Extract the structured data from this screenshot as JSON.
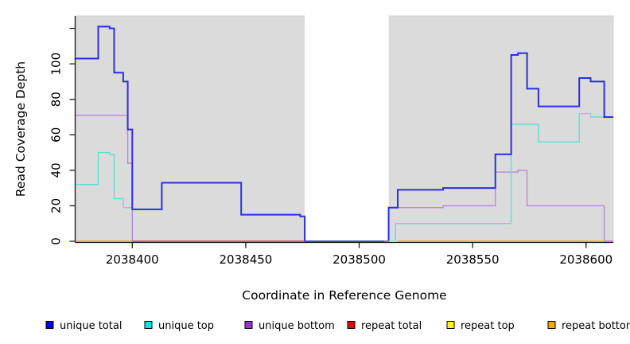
{
  "figure": {
    "x_axis_title": "Coordinate in Reference Genome",
    "y_axis_title": "Read Coverage Depth"
  },
  "chart_data": {
    "type": "line",
    "step": true,
    "title": "",
    "xlabel": "Coordinate in Reference Genome",
    "ylabel": "Read Coverage Depth",
    "x_domain": [
      2038375,
      2038612
    ],
    "y_domain": [
      0,
      127
    ],
    "grid": false,
    "panel_bg": "#dbdbdb",
    "axis_color": "#1a1a1a",
    "x_ticks": [
      {
        "value": 2038400,
        "label": "2038400"
      },
      {
        "value": 2038450,
        "label": "2038450"
      },
      {
        "value": 2038500,
        "label": "2038500"
      },
      {
        "value": 2038550,
        "label": "2038550"
      },
      {
        "value": 2038600,
        "label": "2038600"
      }
    ],
    "y_ticks": [
      {
        "value": 0,
        "label": "0"
      },
      {
        "value": 20,
        "label": "20"
      },
      {
        "value": 40,
        "label": "40"
      },
      {
        "value": 60,
        "label": "60"
      },
      {
        "value": 80,
        "label": "80"
      },
      {
        "value": 100,
        "label": "100"
      },
      {
        "value": 120,
        "label": ""
      }
    ],
    "masked_region": {
      "x0": 2038476,
      "x1": 2038513,
      "color": "#ffffff"
    },
    "series": [
      {
        "name": "repeat total",
        "color": "#e00000",
        "width": 1.3,
        "points": [
          [
            2038375,
            0
          ],
          [
            2038612,
            0
          ]
        ]
      },
      {
        "name": "repeat top",
        "color": "#ffff00",
        "width": 1.3,
        "points": [
          [
            2038375,
            0
          ],
          [
            2038612,
            0
          ]
        ]
      },
      {
        "name": "repeat bottom",
        "color": "#ffa500",
        "width": 1.3,
        "points": [
          [
            2038375,
            0
          ],
          [
            2038612,
            0
          ]
        ]
      },
      {
        "name": "unique bottom",
        "color": "#bb85de",
        "width": 1.4,
        "points": [
          [
            2038375,
            71
          ],
          [
            2038398,
            44
          ],
          [
            2038400,
            0
          ],
          [
            2038513,
            19
          ],
          [
            2038537,
            20
          ],
          [
            2038560,
            39
          ],
          [
            2038570,
            40
          ],
          [
            2038574,
            20
          ],
          [
            2038608,
            0
          ],
          [
            2038612,
            0
          ]
        ]
      },
      {
        "name": "unique top",
        "color": "#5cdfda",
        "width": 1.4,
        "points": [
          [
            2038375,
            32
          ],
          [
            2038385,
            50
          ],
          [
            2038390,
            49
          ],
          [
            2038392,
            24
          ],
          [
            2038396,
            19
          ],
          [
            2038400,
            18
          ],
          [
            2038413,
            33
          ],
          [
            2038448,
            15
          ],
          [
            2038474,
            14
          ],
          [
            2038476,
            0
          ],
          [
            2038516,
            10
          ],
          [
            2038567,
            66
          ],
          [
            2038579,
            56
          ],
          [
            2038597,
            72
          ],
          [
            2038602,
            70
          ],
          [
            2038612,
            70
          ]
        ]
      },
      {
        "name": "unique total",
        "color": "#2a30da",
        "width": 2,
        "points": [
          [
            2038375,
            103
          ],
          [
            2038385,
            121
          ],
          [
            2038390,
            120
          ],
          [
            2038392,
            95
          ],
          [
            2038396,
            90
          ],
          [
            2038398,
            63
          ],
          [
            2038400,
            18
          ],
          [
            2038413,
            33
          ],
          [
            2038448,
            15
          ],
          [
            2038474,
            14
          ],
          [
            2038476,
            0
          ],
          [
            2038513,
            19
          ],
          [
            2038517,
            29
          ],
          [
            2038537,
            30
          ],
          [
            2038560,
            49
          ],
          [
            2038567,
            105
          ],
          [
            2038570,
            106
          ],
          [
            2038574,
            86
          ],
          [
            2038579,
            76
          ],
          [
            2038597,
            92
          ],
          [
            2038602,
            90
          ],
          [
            2038608,
            70
          ],
          [
            2038612,
            70
          ]
        ]
      }
    ],
    "baseline_segments": [
      {
        "x0": 2038375,
        "x1": 2038400,
        "color": "#ffa500"
      },
      {
        "x0": 2038400,
        "x1": 2038476,
        "color": "#d94368"
      },
      {
        "x0": 2038476,
        "x1": 2038511,
        "color": "#4a4ae0"
      },
      {
        "x0": 2038511,
        "x1": 2038513,
        "color": "#a070d8"
      },
      {
        "x0": 2038513,
        "x1": 2038517,
        "color": "#9fe8e8"
      },
      {
        "x0": 2038517,
        "x1": 2038608,
        "color": "#ffa500"
      },
      {
        "x0": 2038608,
        "x1": 2038612,
        "color": "#c77ad0"
      }
    ],
    "legend": {
      "position": "bottom",
      "items": [
        {
          "label": "unique total",
          "color": "#0000f0"
        },
        {
          "label": "unique top",
          "color": "#00e5ee"
        },
        {
          "label": "unique bottom",
          "color": "#9b30d8"
        },
        {
          "label": "repeat total",
          "color": "#ee0000"
        },
        {
          "label": "repeat top",
          "color": "#ffff00"
        },
        {
          "label": "repeat bottom",
          "color": "#ffa500"
        }
      ]
    }
  }
}
